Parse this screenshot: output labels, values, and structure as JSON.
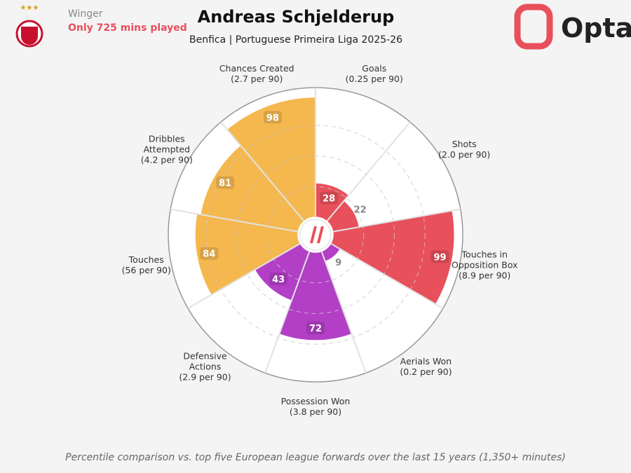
{
  "header": {
    "position": "Winger",
    "note": "Only 725 mins played",
    "brand": "Opta"
  },
  "chart_data": {
    "type": "pizza",
    "title": "Andreas Schjelderup",
    "subtitle": "Benfica | Portuguese Primeira Liga 2025-26",
    "categories": [
      "Goals",
      "Shots",
      "Touches in Opposition Box",
      "Aerials Won",
      "Possession Won",
      "Defensive Actions",
      "Touches",
      "Dribbles Attempted",
      "Chances Created"
    ],
    "per90": [
      "(0.25 per 90)",
      "(2.0 per 90)",
      "(8.9 per 90)",
      "(0.2 per 90)",
      "(3.8 per 90)",
      "(2.9 per 90)",
      "(56 per 90)",
      "(4.2 per 90)",
      "(2.7 per 90)"
    ],
    "values": [
      28,
      22,
      99,
      9,
      72,
      43,
      84,
      81,
      98
    ],
    "colors": [
      "#e8505b",
      "#e8505b",
      "#e8505b",
      "#b23fc6",
      "#b23fc6",
      "#b23fc6",
      "#f5b84f",
      "#f5b84f",
      "#f5b84f"
    ],
    "ylim": [
      0,
      100
    ],
    "yticks": [
      25,
      50,
      75
    ],
    "footnote": "Percentile comparison vs. top five European league forwards over the last 15 years (1,350+ minutes)"
  }
}
